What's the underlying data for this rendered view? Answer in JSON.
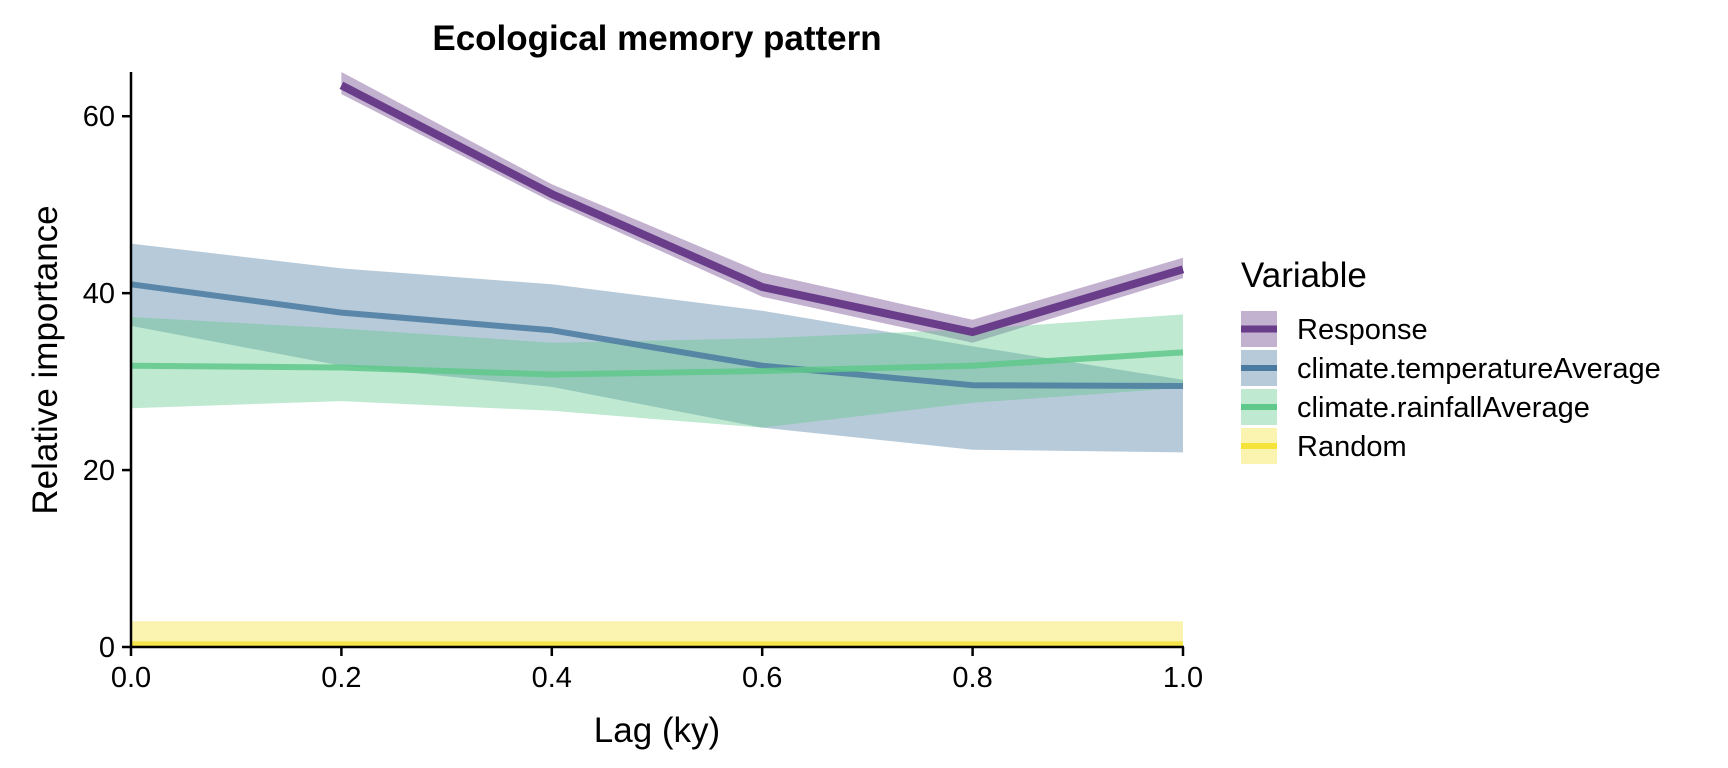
{
  "chart_data": {
    "type": "line",
    "title": "Ecological memory pattern",
    "xlabel": "Lag (ky)",
    "ylabel": "Relative importance",
    "x": [
      0.0,
      0.2,
      0.4,
      0.6,
      0.8,
      1.0
    ],
    "xlim": [
      0,
      1
    ],
    "ylim": [
      0,
      65
    ],
    "x_ticks": [
      "0.0",
      "0.2",
      "0.4",
      "0.6",
      "0.8",
      "1.0"
    ],
    "y_ticks": [
      "0",
      "20",
      "40",
      "60"
    ],
    "grid": false,
    "legend_title": "Variable",
    "legend_position": "right",
    "series": [
      {
        "name": "Response",
        "color": "#6a3d8a",
        "values": [
          null,
          63.5,
          51.2,
          40.7,
          35.6,
          42.7
        ],
        "lower": [
          null,
          62.5,
          50.3,
          39.6,
          34.4,
          41.7
        ],
        "upper": [
          null,
          65.0,
          52.3,
          42.3,
          37.0,
          44.0
        ]
      },
      {
        "name": "climate.temperatureAverage",
        "color": "#4a7ba0",
        "values": [
          41.0,
          37.8,
          35.8,
          31.8,
          29.6,
          29.5
        ],
        "lower": [
          36.3,
          31.8,
          29.4,
          24.8,
          22.3,
          22.0
        ],
        "upper": [
          45.6,
          42.8,
          41.0,
          38.0,
          34.0,
          30.2
        ]
      },
      {
        "name": "climate.rainfallAverage",
        "color": "#5fc88b",
        "values": [
          31.8,
          31.6,
          30.8,
          31.2,
          31.8,
          33.3
        ],
        "lower": [
          27.0,
          27.8,
          26.7,
          24.8,
          27.6,
          29.3
        ],
        "upper": [
          37.3,
          36.0,
          34.4,
          34.9,
          35.9,
          37.6
        ]
      },
      {
        "name": "Random",
        "color": "#f5e33a",
        "values": [
          0.3,
          0.3,
          0.3,
          0.3,
          0.3,
          0.3
        ],
        "lower": [
          0,
          0,
          0,
          0,
          0,
          0
        ],
        "upper": [
          2.9,
          2.9,
          2.9,
          2.9,
          2.9,
          2.9
        ]
      }
    ]
  }
}
